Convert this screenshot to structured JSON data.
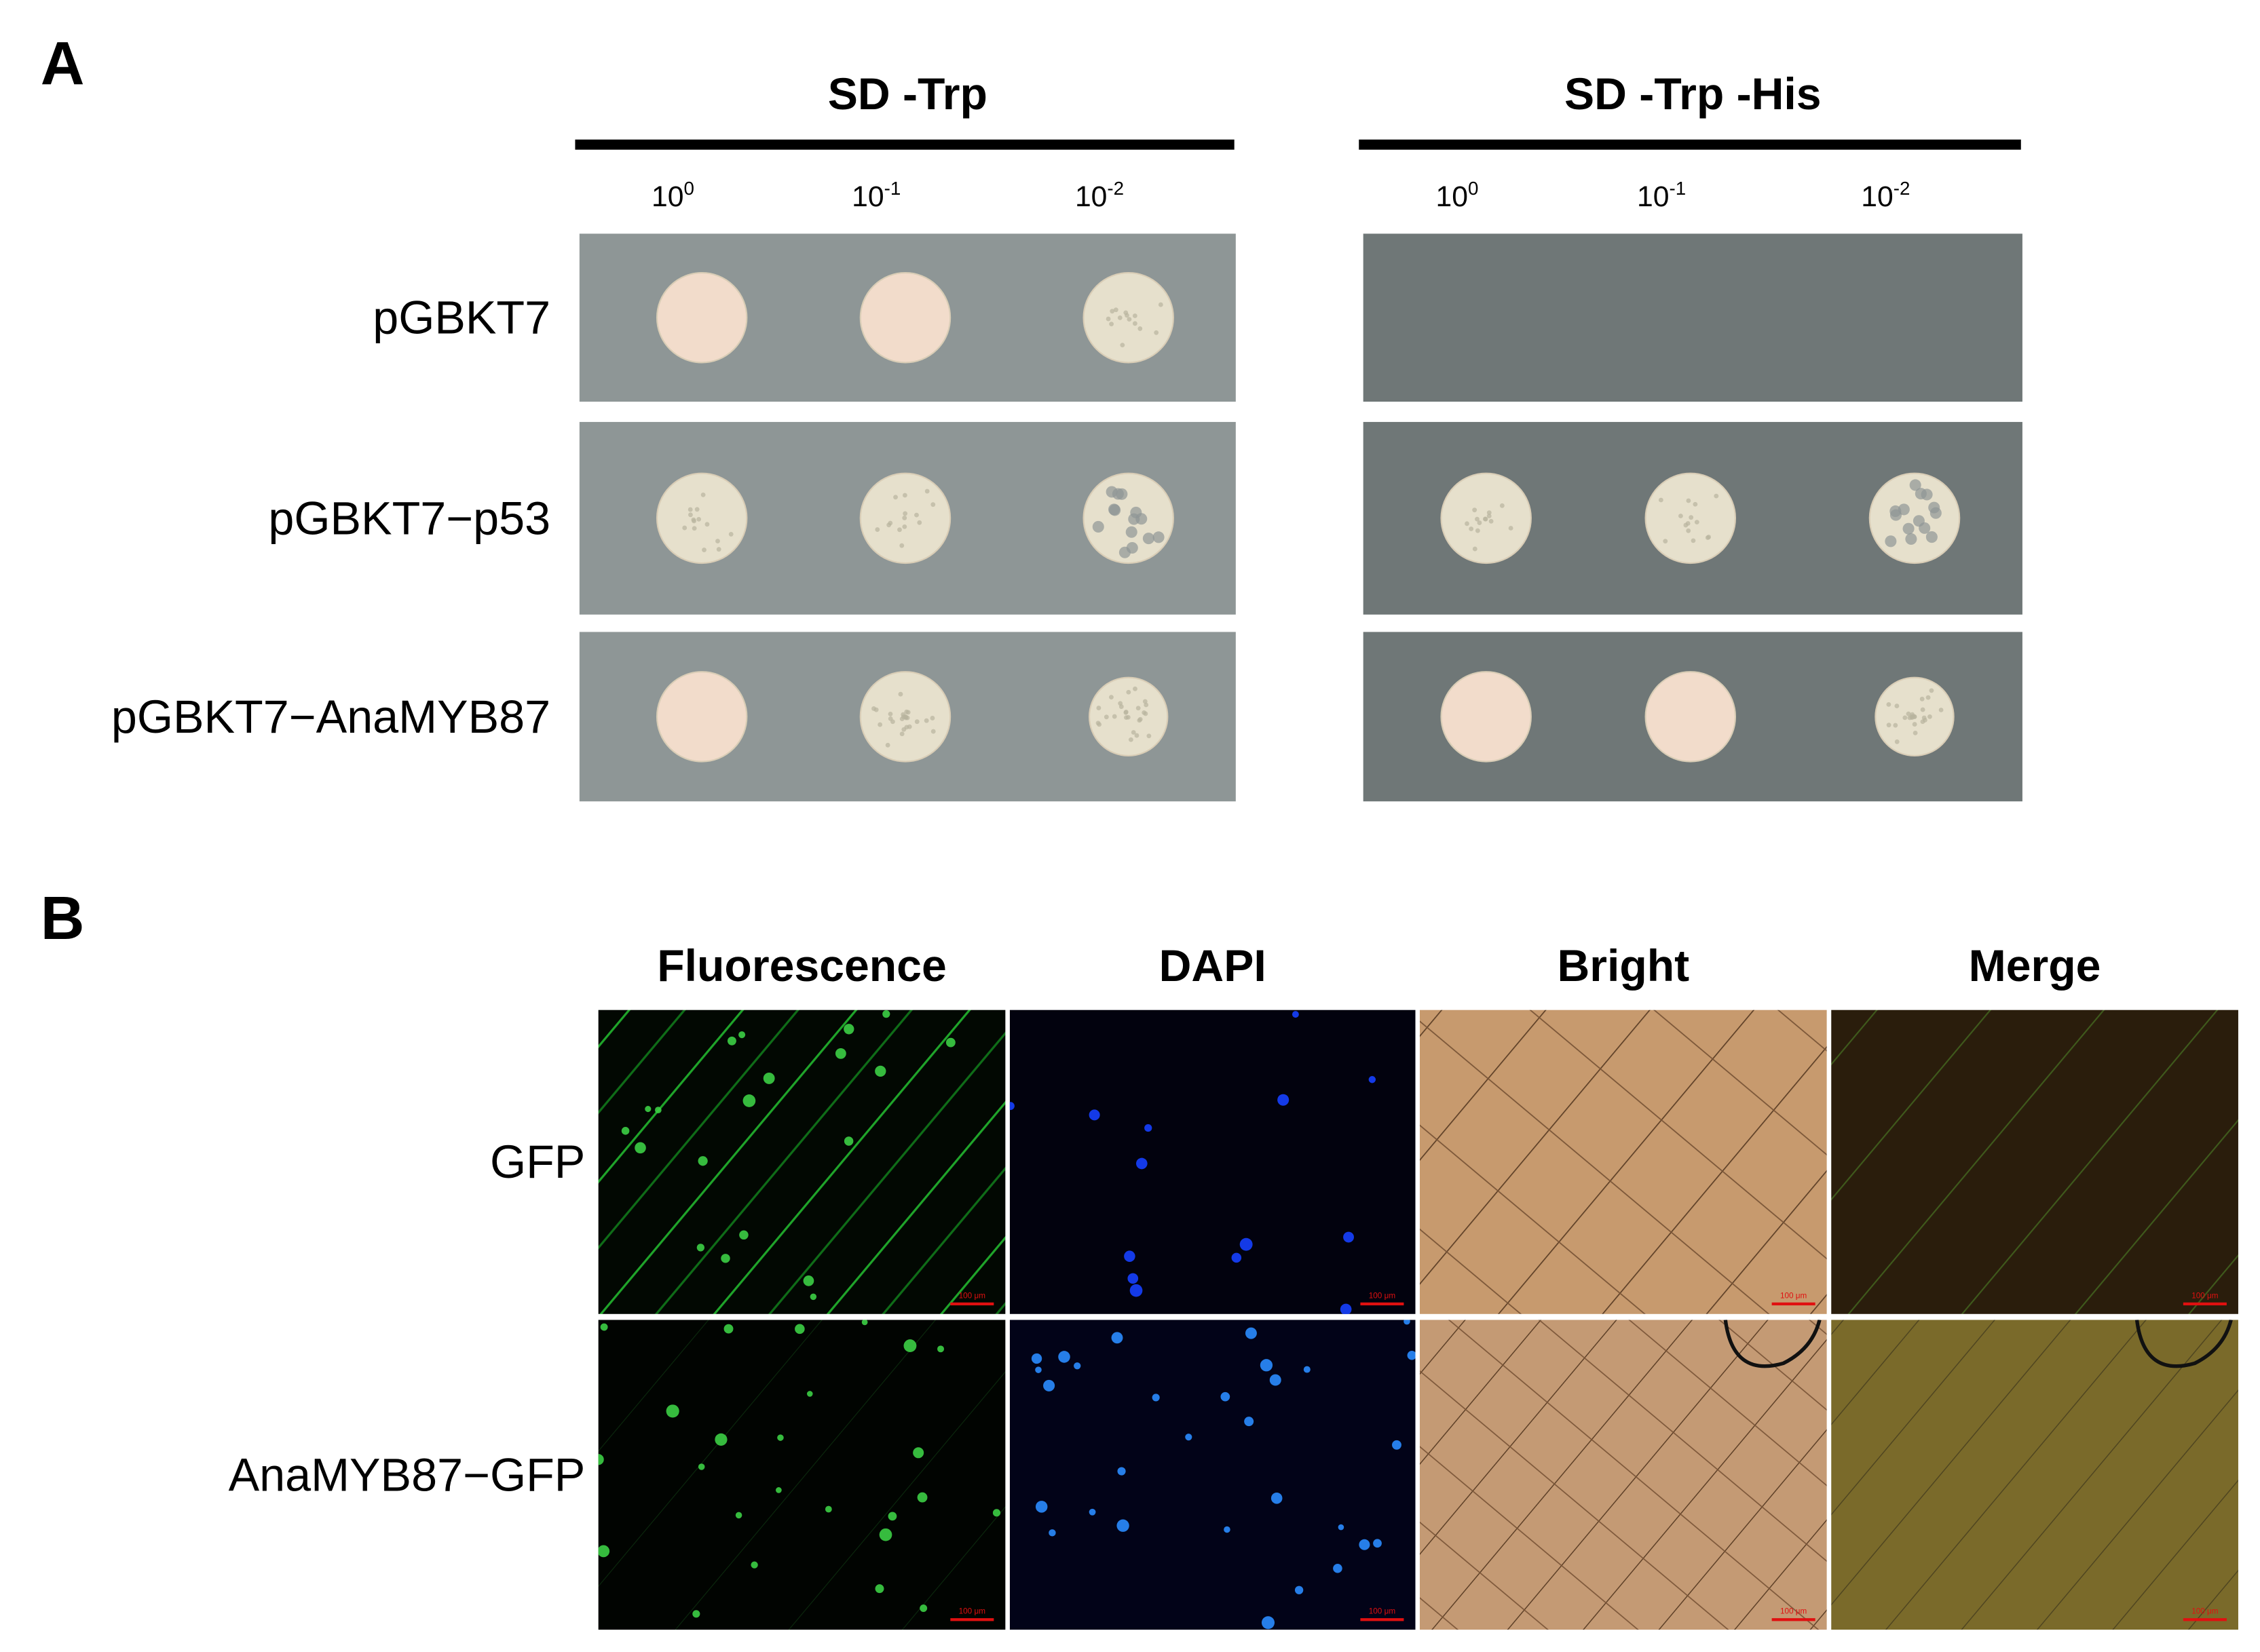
{
  "panel_a": {
    "label": "A",
    "plates": [
      {
        "title": "SD -Trp",
        "dilutions": [
          {
            "base": "10",
            "exp": "0"
          },
          {
            "base": "10",
            "exp": "-1"
          },
          {
            "base": "10",
            "exp": "-2"
          }
        ]
      },
      {
        "title": "SD -Trp -His",
        "dilutions": [
          {
            "base": "10",
            "exp": "0"
          },
          {
            "base": "10",
            "exp": "-1"
          },
          {
            "base": "10",
            "exp": "-2"
          }
        ]
      }
    ],
    "rows": [
      "pGBKT7",
      "pGBKT7−p53",
      "pGBKT7−AnaMYB87"
    ]
  },
  "panel_b": {
    "label": "B",
    "columns": [
      "Fluorescence",
      "DAPI",
      "Bright",
      "Merge"
    ],
    "rows": [
      "GFP",
      "AnaMYB87−GFP"
    ],
    "scale_bar": "100 μm"
  }
}
